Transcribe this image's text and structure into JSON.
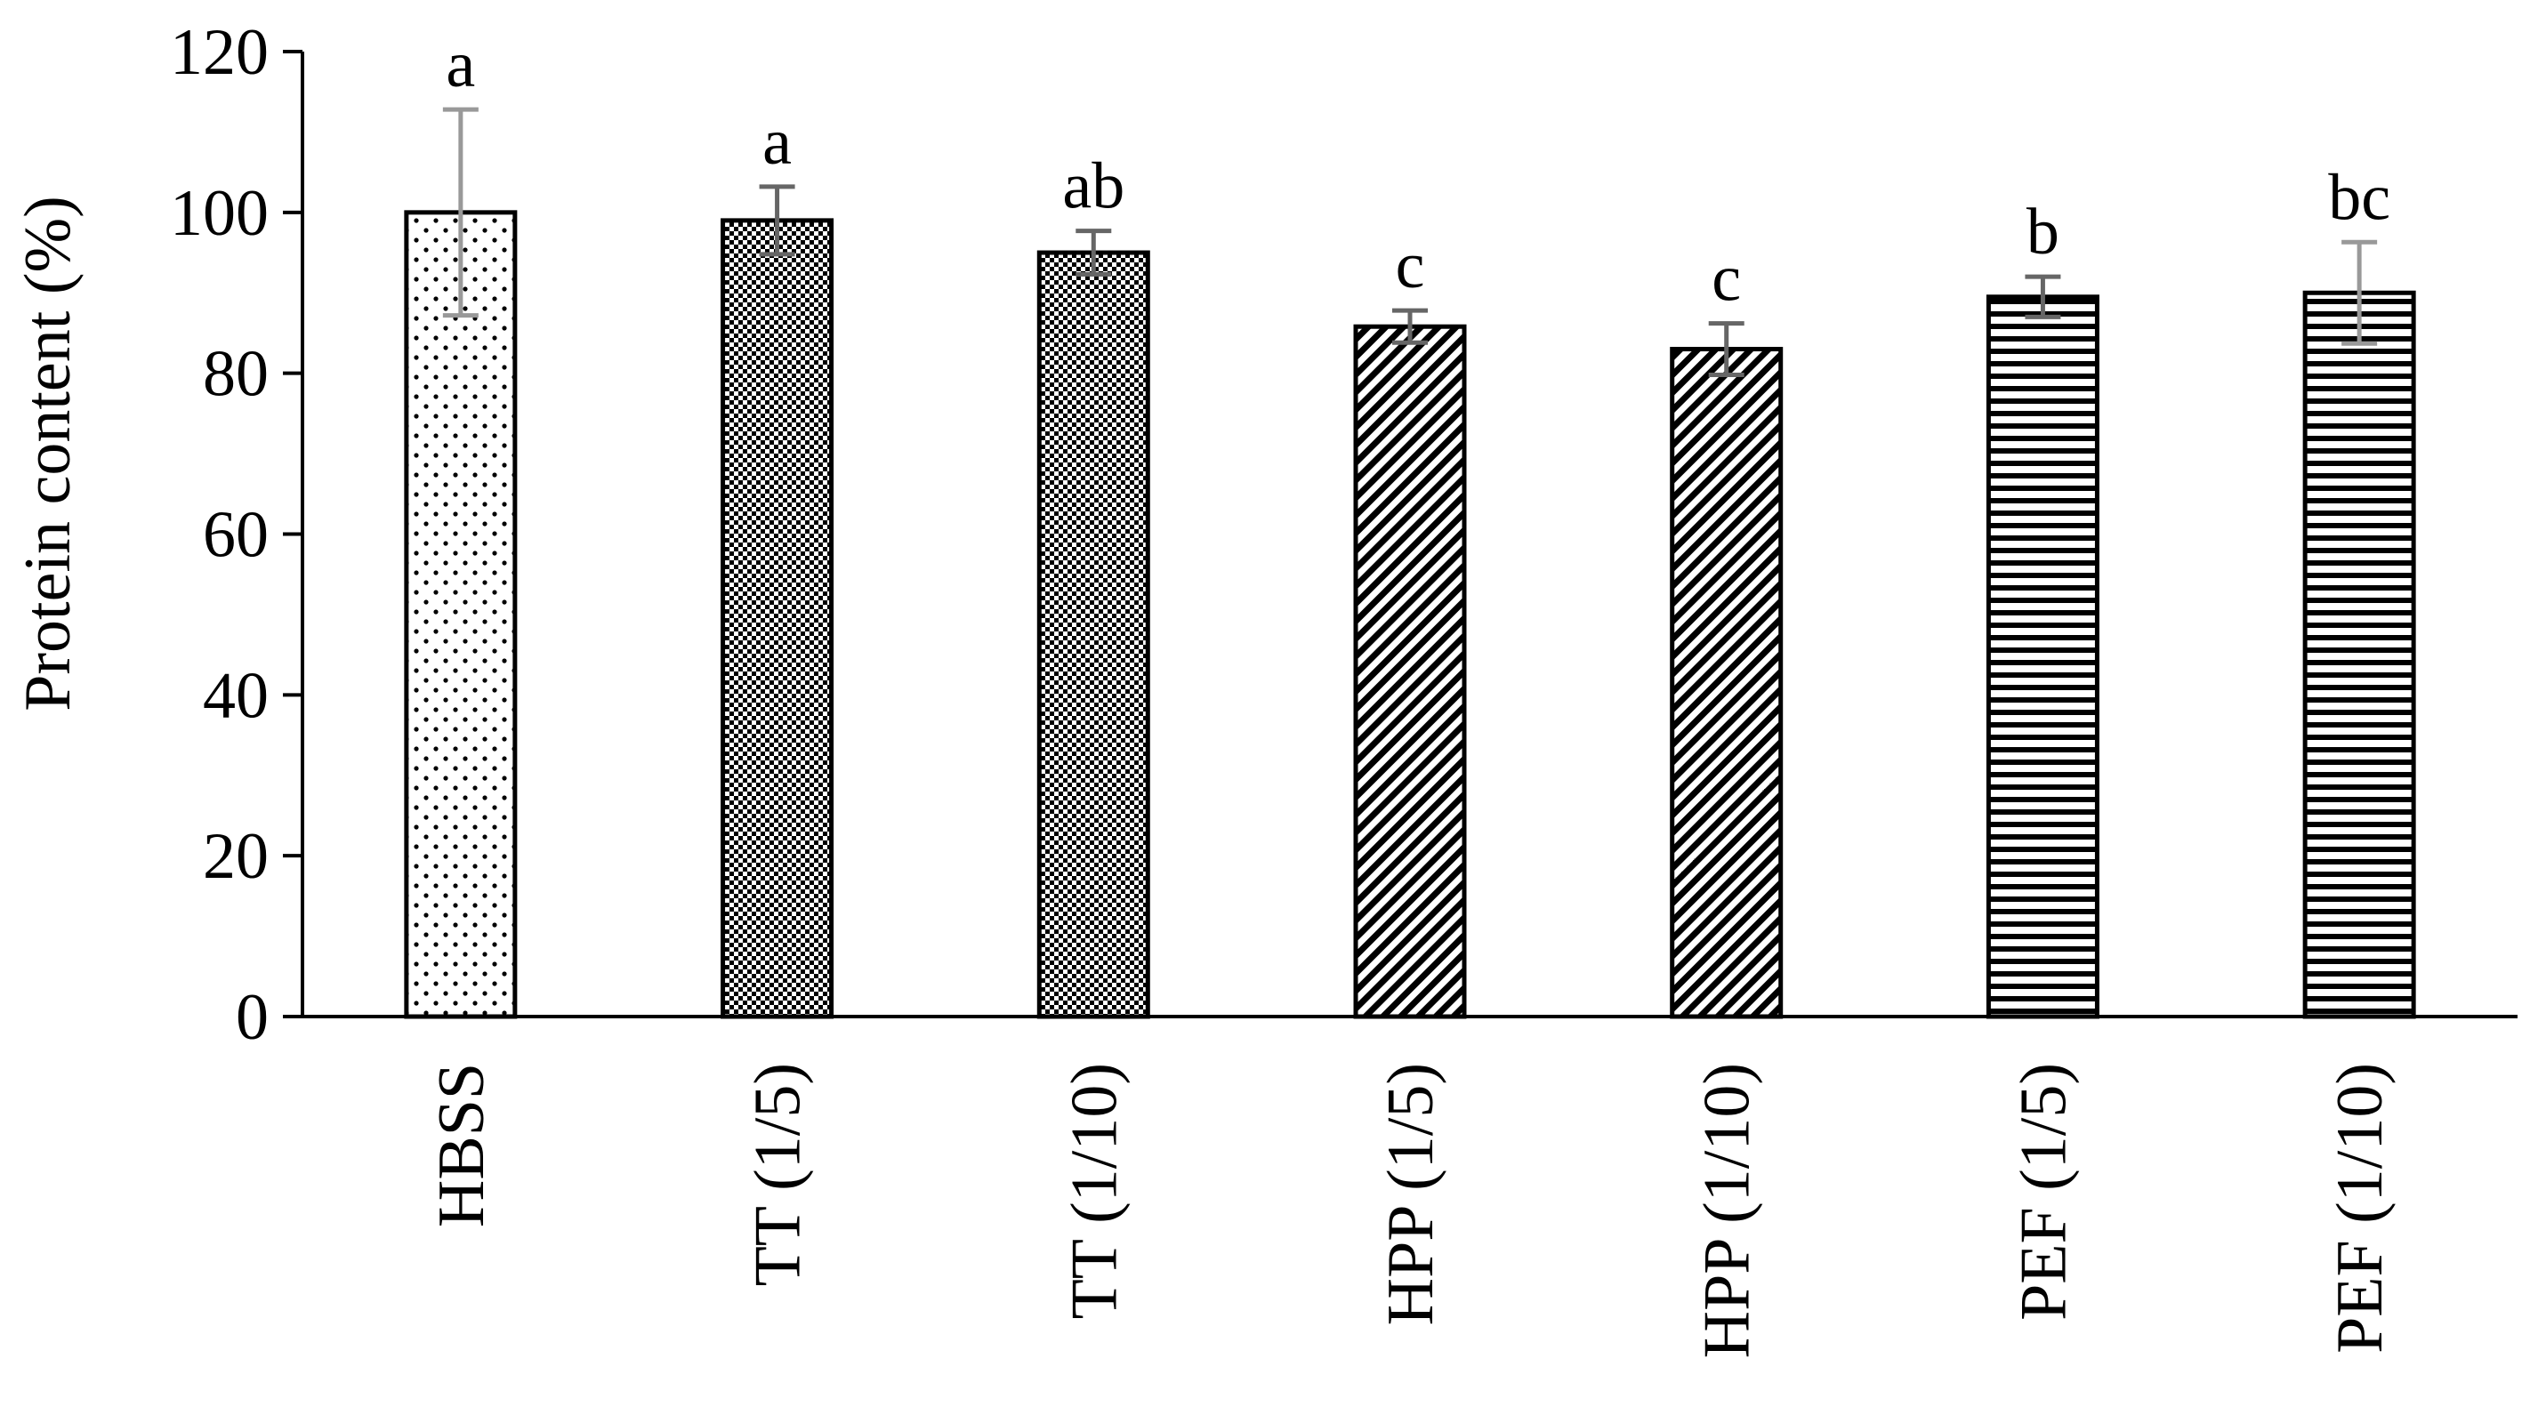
{
  "chart_data": {
    "type": "bar",
    "title": "",
    "xlabel": "",
    "ylabel": "Protein content (%)",
    "ylim": [
      0,
      120
    ],
    "yticks": [
      0,
      20,
      40,
      60,
      80,
      100,
      120
    ],
    "categories": [
      "HBSS",
      "TT (1/5)",
      "TT (1/10)",
      "HPP (1/5)",
      "HPP (1/10)",
      "PEF (1/5)",
      "PEF (1/10)"
    ],
    "values": [
      100,
      99,
      95,
      85.8,
      83,
      89.5,
      90
    ],
    "errors": [
      12.8,
      4.2,
      2.7,
      2.0,
      3.2,
      2.5,
      6.3
    ],
    "error_colors": [
      "#999999",
      "#666666",
      "#666666",
      "#666666",
      "#666666",
      "#666666",
      "#999999"
    ],
    "significance": [
      "a",
      "a",
      "ab",
      "c",
      "c",
      "b",
      "bc"
    ],
    "patterns": [
      "dots",
      "checker",
      "checker",
      "diagonal",
      "diagonal",
      "horizontal",
      "horizontal"
    ],
    "bar_fill": "#ffffff",
    "bar_stroke": "#000000",
    "grid": false,
    "legend": "none"
  }
}
